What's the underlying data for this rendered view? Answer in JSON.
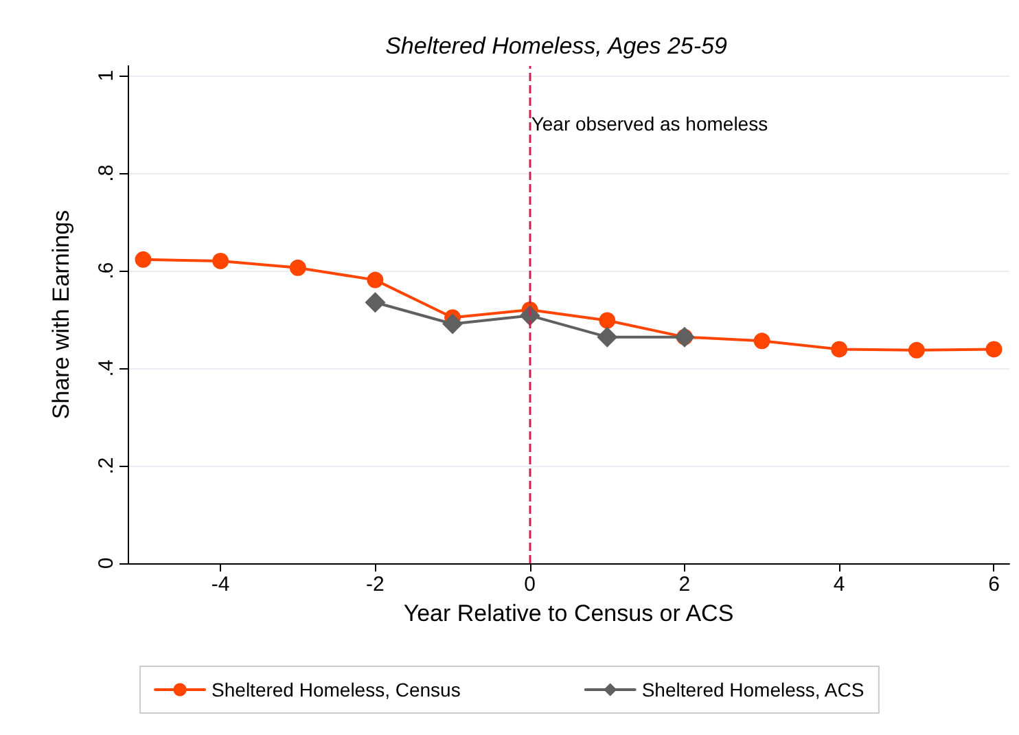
{
  "chart_data": {
    "type": "line",
    "title": "Sheltered Homeless, Ages 25-59",
    "xlabel": "Year Relative to Census or ACS",
    "ylabel": "Share with Earnings",
    "xlim": [
      -5.2,
      6.2
    ],
    "xticks": [
      -4,
      -2,
      0,
      2,
      4,
      6
    ],
    "ylim": [
      0,
      1.02
    ],
    "yticks": [
      0,
      {
        "value": 0.2,
        "label": ".2"
      },
      {
        "value": 0.4,
        "label": ".4"
      },
      {
        "value": 0.6,
        "label": ".6"
      },
      {
        "value": 0.8,
        "label": ".8"
      },
      1
    ],
    "grid": "y",
    "legend": "bottom",
    "series": [
      {
        "name": "Sheltered Homeless, Census",
        "color": "#ff4500",
        "marker": "circle",
        "x": [
          -5,
          -4,
          -3,
          -2,
          -1,
          0,
          1,
          2,
          3,
          4,
          5,
          6
        ],
        "values": [
          0.623,
          0.62,
          0.606,
          0.581,
          0.504,
          0.52,
          0.498,
          0.464,
          0.456,
          0.439,
          0.437,
          0.439
        ]
      },
      {
        "name": "Sheltered Homeless, ACS",
        "color": "#606060",
        "marker": "diamond",
        "x": [
          -2,
          -1,
          0,
          1,
          2
        ],
        "values": [
          0.535,
          0.491,
          0.508,
          0.464,
          0.464
        ]
      }
    ],
    "ref_lines": [
      {
        "axis": "x",
        "value": 0,
        "label": "Year observed as homeless",
        "color": "#d2204c",
        "line_style": "dashed"
      }
    ]
  }
}
